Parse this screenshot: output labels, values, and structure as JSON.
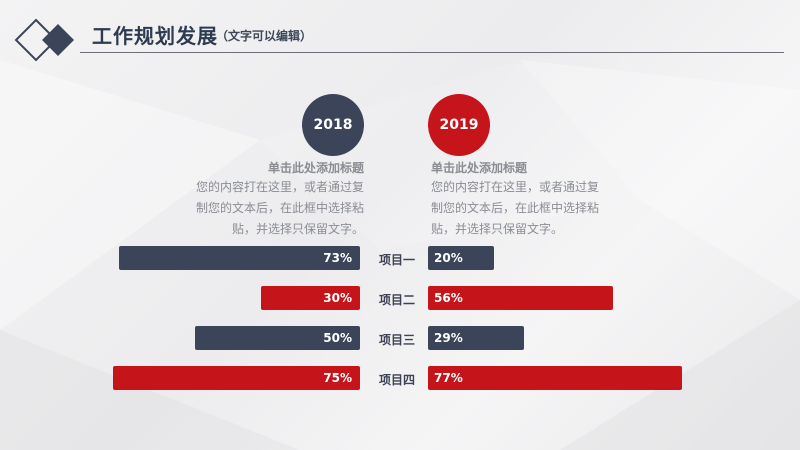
{
  "header": {
    "title": "工作规划发展",
    "subtitle": "（文字可以编辑）"
  },
  "years": {
    "left": "2018",
    "right": "2019"
  },
  "blocks": {
    "left": {
      "title": "单击此处添加标题",
      "lines": [
        "您的内容打在这里，或者通过复",
        "制您的文本后，在此框中选择粘",
        "贴，并选择只保留文字。"
      ]
    },
    "right": {
      "title": "单击此处添加标题",
      "lines": [
        "您的内容打在这里，或者通过复",
        "制您的文本后，在此框中选择粘",
        "贴，并选择只保留文字。"
      ]
    }
  },
  "chart_data": {
    "type": "bar",
    "categories": [
      "项目一",
      "项目二",
      "项目三",
      "项目四"
    ],
    "series": [
      {
        "values": [
          73,
          30,
          50,
          75
        ],
        "labels": [
          "73%",
          "30%",
          "50%",
          "75%"
        ],
        "colors": [
          "#3b4459",
          "#c5151b",
          "#3b4459",
          "#c5151b"
        ]
      },
      {
        "values": [
          20,
          56,
          29,
          77
        ],
        "labels": [
          "20%",
          "56%",
          "29%",
          "77%"
        ],
        "colors": [
          "#3b4459",
          "#c5151b",
          "#3b4459",
          "#c5151b"
        ]
      }
    ]
  },
  "colors": {
    "navy": "#3b4459",
    "red": "#c5151b"
  }
}
